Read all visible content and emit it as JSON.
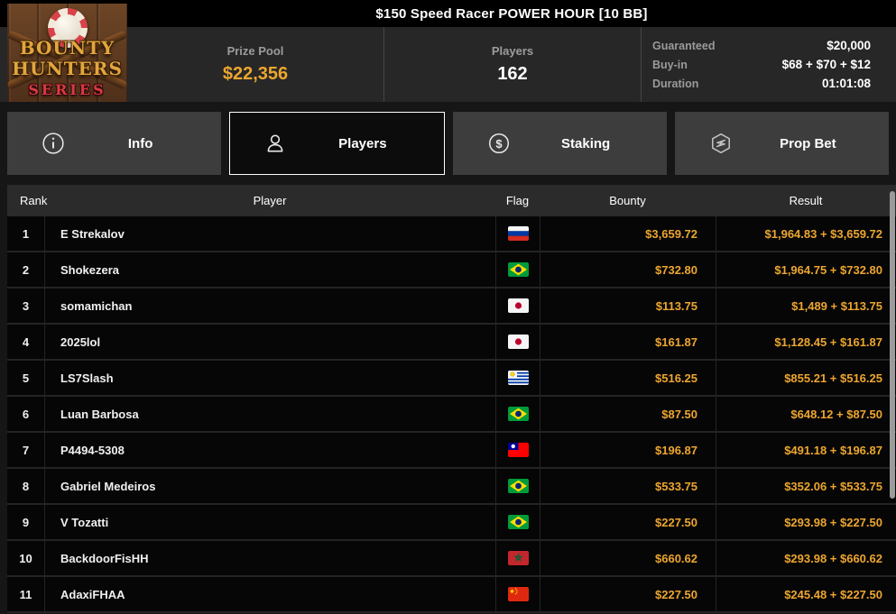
{
  "header": {
    "title": "$150 Speed Racer POWER HOUR [10 BB]"
  },
  "logo": {
    "line1": "BOUNTY",
    "line2": "HUNTERS",
    "line3": "SERIES"
  },
  "stats": {
    "prize_pool_label": "Prize Pool",
    "prize_pool_value": "$22,356",
    "players_label": "Players",
    "players_value": "162",
    "details": [
      {
        "label": "Guaranteed",
        "value": "$20,000"
      },
      {
        "label": "Buy-in",
        "value": "$68 + $70 + $12"
      },
      {
        "label": "Duration",
        "value": "01:01:08"
      }
    ]
  },
  "tabs": [
    {
      "label": "Info",
      "icon": "info-icon",
      "active": false
    },
    {
      "label": "Players",
      "icon": "players-icon",
      "active": true
    },
    {
      "label": "Staking",
      "icon": "staking-icon",
      "active": false
    },
    {
      "label": "Prop Bet",
      "icon": "prop-bet-icon",
      "active": false
    }
  ],
  "table": {
    "columns": [
      "Rank",
      "Player",
      "Flag",
      "Bounty",
      "Result"
    ],
    "rows": [
      {
        "rank": "1",
        "player": "E Strekalov",
        "flag": "russia",
        "bounty": "$3,659.72",
        "result": "$1,964.83 + $3,659.72"
      },
      {
        "rank": "2",
        "player": "Shokezera",
        "flag": "brazil",
        "bounty": "$732.80",
        "result": "$1,964.75 + $732.80"
      },
      {
        "rank": "3",
        "player": "somamichan",
        "flag": "japan",
        "bounty": "$113.75",
        "result": "$1,489 + $113.75"
      },
      {
        "rank": "4",
        "player": "2025lol",
        "flag": "japan",
        "bounty": "$161.87",
        "result": "$1,128.45 + $161.87"
      },
      {
        "rank": "5",
        "player": "LS7Slash",
        "flag": "uruguay",
        "bounty": "$516.25",
        "result": "$855.21 + $516.25"
      },
      {
        "rank": "6",
        "player": "Luan Barbosa",
        "flag": "brazil",
        "bounty": "$87.50",
        "result": "$648.12 + $87.50"
      },
      {
        "rank": "7",
        "player": "P4494-5308",
        "flag": "taiwan",
        "bounty": "$196.87",
        "result": "$491.18 + $196.87"
      },
      {
        "rank": "8",
        "player": "Gabriel Medeiros",
        "flag": "brazil",
        "bounty": "$533.75",
        "result": "$352.06 + $533.75"
      },
      {
        "rank": "9",
        "player": "V Tozatti",
        "flag": "brazil",
        "bounty": "$227.50",
        "result": "$293.98 + $227.50"
      },
      {
        "rank": "10",
        "player": "BackdoorFisHH",
        "flag": "morocco",
        "bounty": "$660.62",
        "result": "$293.98 + $660.62"
      },
      {
        "rank": "11",
        "player": "AdaxiFHAA",
        "flag": "china",
        "bounty": "$227.50",
        "result": "$245.48 + $227.50"
      }
    ]
  },
  "colors": {
    "gold": "#eda62f",
    "accent_red": "#d83b42"
  }
}
